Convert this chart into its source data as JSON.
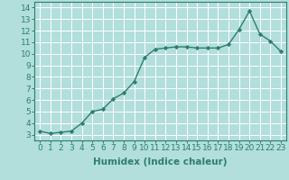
{
  "x": [
    0,
    1,
    2,
    3,
    4,
    5,
    6,
    7,
    8,
    9,
    10,
    11,
    12,
    13,
    14,
    15,
    16,
    17,
    18,
    19,
    20,
    21,
    22,
    23
  ],
  "y": [
    3.3,
    3.1,
    3.2,
    3.3,
    4.0,
    5.0,
    5.2,
    6.1,
    6.6,
    7.6,
    9.7,
    10.4,
    10.5,
    10.6,
    10.6,
    10.5,
    10.5,
    10.5,
    10.8,
    12.1,
    13.7,
    11.7,
    11.1,
    10.2
  ],
  "line_color": "#2e7d6e",
  "marker": "D",
  "marker_size": 2.2,
  "bg_color": "#b2dfdb",
  "grid_color": "#ffffff",
  "xlabel": "Humidex (Indice chaleur)",
  "xlim": [
    -0.5,
    23.5
  ],
  "ylim": [
    2.5,
    14.5
  ],
  "yticks": [
    3,
    4,
    5,
    6,
    7,
    8,
    9,
    10,
    11,
    12,
    13,
    14
  ],
  "xticks": [
    0,
    1,
    2,
    3,
    4,
    5,
    6,
    7,
    8,
    9,
    10,
    11,
    12,
    13,
    14,
    15,
    16,
    17,
    18,
    19,
    20,
    21,
    22,
    23
  ],
  "tick_label_fontsize": 6.5,
  "xlabel_fontsize": 7.5,
  "line_width": 1.0,
  "spine_color": "#2e7d6e",
  "tick_color": "#2e7d6e"
}
